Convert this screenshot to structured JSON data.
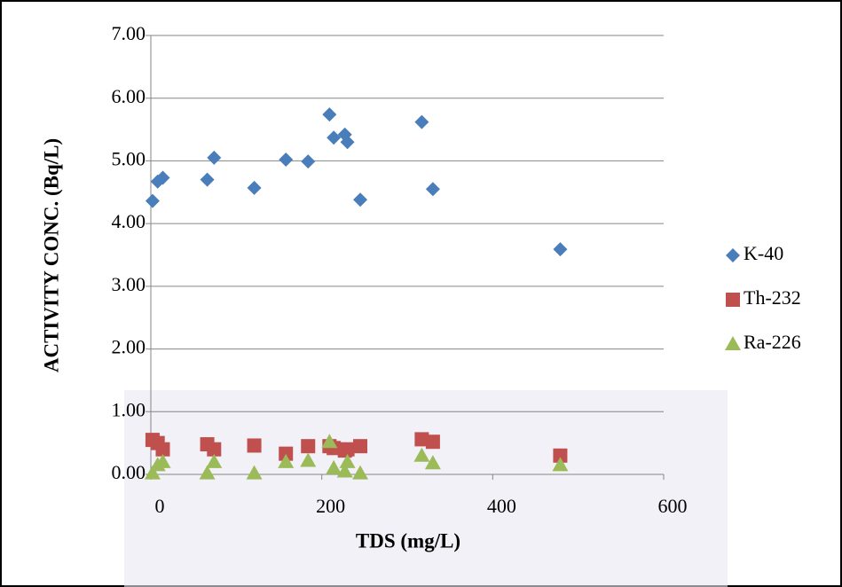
{
  "chart_data": {
    "type": "scatter",
    "xlabel": "TDS (mg/L)",
    "ylabel": "ACTIVITY CONC. (Bq/L)",
    "xlim": [
      0,
      600
    ],
    "xticks": [
      0,
      200,
      400,
      600
    ],
    "ylim": [
      0,
      7
    ],
    "yticks": [
      {
        "value": 0,
        "label": "0.00"
      },
      {
        "value": 1,
        "label": "1.00"
      },
      {
        "value": 2,
        "label": "2.00"
      },
      {
        "value": 3,
        "label": "3.00"
      },
      {
        "value": 4,
        "label": "4.00"
      },
      {
        "value": 5,
        "label": "5.00"
      },
      {
        "value": 6,
        "label": "6.00"
      },
      {
        "value": 7,
        "label": "7.00"
      }
    ],
    "grid": true,
    "legend": "right",
    "series": [
      {
        "name": "K-40",
        "color": "#4a7ebb",
        "marker": "diamond",
        "x": [
          2,
          8,
          14,
          66,
          74,
          121,
          158,
          184,
          209,
          214,
          227,
          230,
          245,
          317,
          330,
          479
        ],
        "values": [
          4.36,
          4.67,
          4.73,
          4.7,
          5.05,
          4.57,
          5.02,
          4.99,
          5.74,
          5.37,
          5.42,
          5.3,
          4.38,
          5.62,
          4.55,
          3.59
        ]
      },
      {
        "name": "Th-232",
        "color": "#c0504d",
        "marker": "square",
        "x": [
          2,
          8,
          14,
          66,
          74,
          121,
          158,
          184,
          209,
          214,
          227,
          230,
          245,
          317,
          330,
          479
        ],
        "values": [
          0.55,
          0.5,
          0.4,
          0.48,
          0.4,
          0.46,
          0.33,
          0.45,
          0.45,
          0.42,
          0.38,
          0.4,
          0.45,
          0.56,
          0.52,
          0.3
        ]
      },
      {
        "name": "Ra-226",
        "color": "#9bbb59",
        "marker": "triangle",
        "x": [
          2,
          8,
          14,
          66,
          74,
          121,
          158,
          184,
          209,
          214,
          227,
          230,
          245,
          317,
          330,
          479
        ],
        "values": [
          0.02,
          0.15,
          0.2,
          0.02,
          0.2,
          0.02,
          0.2,
          0.22,
          0.52,
          0.1,
          0.05,
          0.2,
          0.02,
          0.3,
          0.18,
          0.15
        ]
      }
    ]
  }
}
